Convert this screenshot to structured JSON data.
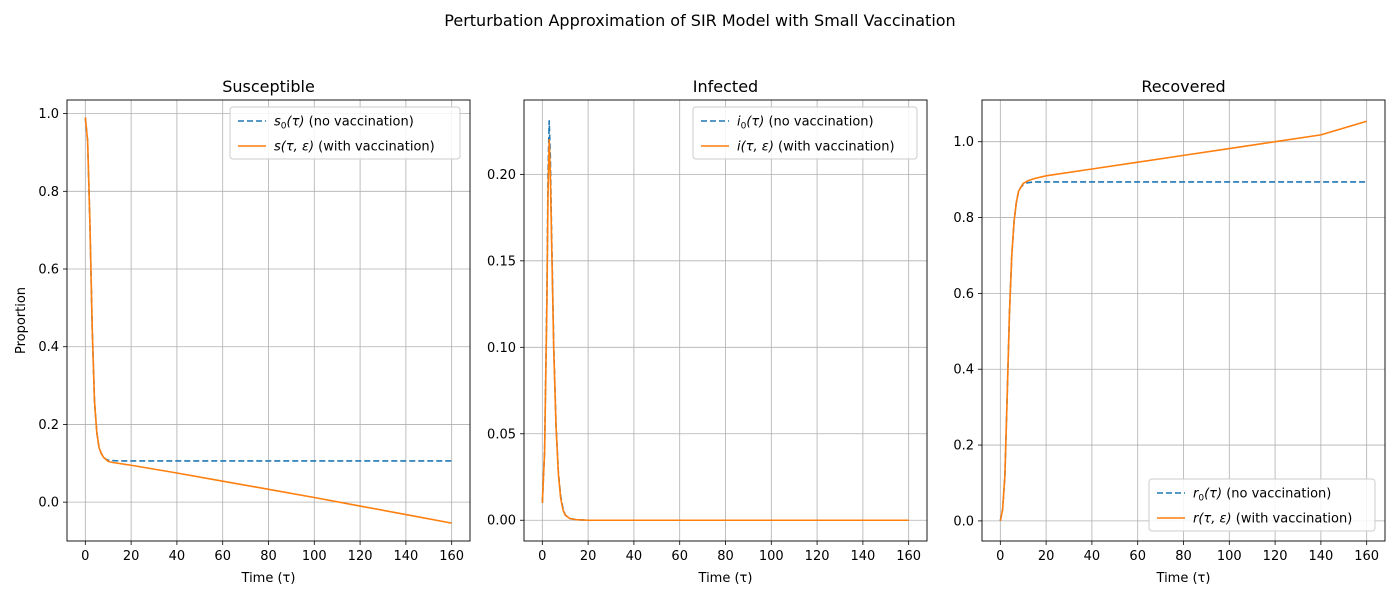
{
  "suptitle": "Perturbation Approximation of SIR Model with Small Vaccination",
  "colors": {
    "no_vaccination": "#1f77b4",
    "with_vaccination": "#ff7f0e",
    "grid": "#b0b0b0"
  },
  "chart_data": [
    {
      "type": "line",
      "title": "Susceptible",
      "xlabel": "Time (τ)",
      "ylabel": "Proportion",
      "xlim": [
        -8,
        168
      ],
      "ylim": [
        -0.1,
        1.035
      ],
      "xticks": [
        0,
        20,
        40,
        60,
        80,
        100,
        120,
        140,
        160
      ],
      "yticks": [
        0.0,
        0.2,
        0.4,
        0.6,
        0.8,
        1.0
      ],
      "ytick_labels": [
        "0.0",
        "0.2",
        "0.4",
        "0.6",
        "0.8",
        "1.0"
      ],
      "grid": true,
      "legend_position": "upper right",
      "series": [
        {
          "name": "s₀(τ) (no vaccination)",
          "legend_base": "s",
          "legend_sub": "0",
          "legend_args": "(τ)",
          "legend_rest": " (no vaccination)",
          "style": "dashed",
          "x": [
            0,
            1,
            2,
            3,
            4,
            5,
            6,
            7,
            8,
            9,
            10,
            12,
            15,
            20,
            40,
            80,
            120,
            160
          ],
          "y": [
            0.99,
            0.93,
            0.72,
            0.45,
            0.26,
            0.18,
            0.14,
            0.125,
            0.115,
            0.11,
            0.108,
            0.107,
            0.106,
            0.106,
            0.106,
            0.106,
            0.106,
            0.106
          ]
        },
        {
          "name": "s(τ, ε) (with vaccination)",
          "legend_base": "s",
          "legend_sub": "",
          "legend_args": "(τ, ε)",
          "legend_rest": " (with vaccination)",
          "style": "solid",
          "x": [
            0,
            1,
            2,
            3,
            4,
            5,
            6,
            7,
            8,
            9,
            10,
            12,
            20,
            40,
            60,
            80,
            100,
            120,
            140,
            160
          ],
          "y": [
            0.99,
            0.93,
            0.72,
            0.45,
            0.26,
            0.18,
            0.14,
            0.125,
            0.115,
            0.11,
            0.105,
            0.102,
            0.095,
            0.075,
            0.054,
            0.033,
            0.012,
            -0.01,
            -0.032,
            -0.054
          ]
        }
      ]
    },
    {
      "type": "line",
      "title": "Infected",
      "xlabel": "Time (τ)",
      "ylabel": "",
      "xlim": [
        -8,
        168
      ],
      "ylim": [
        -0.012,
        0.243
      ],
      "xticks": [
        0,
        20,
        40,
        60,
        80,
        100,
        120,
        140,
        160
      ],
      "yticks": [
        0.0,
        0.05,
        0.1,
        0.15,
        0.2
      ],
      "ytick_labels": [
        "0.00",
        "0.05",
        "0.10",
        "0.15",
        "0.20"
      ],
      "grid": true,
      "legend_position": "upper right",
      "series": [
        {
          "name": "i₀(τ) (no vaccination)",
          "legend_base": "i",
          "legend_sub": "0",
          "legend_args": "(τ)",
          "legend_rest": " (no vaccination)",
          "style": "dashed",
          "x": [
            0,
            1,
            2,
            2.5,
            3,
            3.5,
            4,
            5,
            6,
            7,
            8,
            9,
            10,
            12,
            15,
            20,
            40,
            80,
            120,
            160
          ],
          "y": [
            0.01,
            0.04,
            0.13,
            0.2,
            0.231,
            0.21,
            0.17,
            0.1,
            0.055,
            0.028,
            0.014,
            0.007,
            0.003,
            0.001,
            0.0003,
            0.0,
            0.0,
            0.0,
            0.0,
            0.0
          ]
        },
        {
          "name": "i(τ, ε) (with vaccination)",
          "legend_base": "i",
          "legend_sub": "",
          "legend_args": "(τ, ε)",
          "legend_rest": " (with vaccination)",
          "style": "solid",
          "x": [
            0,
            1,
            2,
            2.5,
            3,
            3.5,
            4,
            5,
            6,
            7,
            8,
            9,
            10,
            12,
            15,
            20,
            40,
            80,
            120,
            160
          ],
          "y": [
            0.01,
            0.04,
            0.125,
            0.19,
            0.22,
            0.2,
            0.165,
            0.098,
            0.054,
            0.027,
            0.013,
            0.006,
            0.003,
            0.001,
            0.0003,
            0.0,
            0.0,
            0.0,
            0.0,
            0.0
          ]
        }
      ]
    },
    {
      "type": "line",
      "title": "Recovered",
      "xlabel": "Time (τ)",
      "ylabel": "",
      "xlim": [
        -8,
        168
      ],
      "ylim": [
        -0.053,
        1.11
      ],
      "xticks": [
        0,
        20,
        40,
        60,
        80,
        100,
        120,
        140,
        160
      ],
      "yticks": [
        0.0,
        0.2,
        0.4,
        0.6,
        0.8,
        1.0
      ],
      "ytick_labels": [
        "0.0",
        "0.2",
        "0.4",
        "0.6",
        "0.8",
        "1.0"
      ],
      "grid": true,
      "legend_position": "lower right",
      "series": [
        {
          "name": "r₀(τ) (no vaccination)",
          "legend_base": "r",
          "legend_sub": "0",
          "legend_args": "(τ)",
          "legend_rest": " (no vaccination)",
          "style": "dashed",
          "x": [
            0,
            1,
            2,
            3,
            4,
            5,
            6,
            7,
            8,
            9,
            10,
            12,
            15,
            20,
            40,
            80,
            120,
            160
          ],
          "y": [
            0.0,
            0.03,
            0.12,
            0.33,
            0.55,
            0.7,
            0.79,
            0.84,
            0.87,
            0.88,
            0.887,
            0.892,
            0.894,
            0.894,
            0.894,
            0.894,
            0.894,
            0.894
          ]
        },
        {
          "name": "r(τ, ε) (with vaccination)",
          "legend_base": "r",
          "legend_sub": "",
          "legend_args": "(τ, ε)",
          "legend_rest": " (with vaccination)",
          "style": "solid",
          "x": [
            0,
            1,
            2,
            3,
            4,
            5,
            6,
            7,
            8,
            9,
            10,
            12,
            15,
            20,
            40,
            60,
            80,
            100,
            120,
            140,
            160
          ],
          "y": [
            0.0,
            0.03,
            0.12,
            0.33,
            0.55,
            0.7,
            0.79,
            0.84,
            0.87,
            0.88,
            0.89,
            0.897,
            0.903,
            0.91,
            0.928,
            0.946,
            0.964,
            0.982,
            1.0,
            1.018,
            1.054
          ]
        }
      ]
    }
  ]
}
